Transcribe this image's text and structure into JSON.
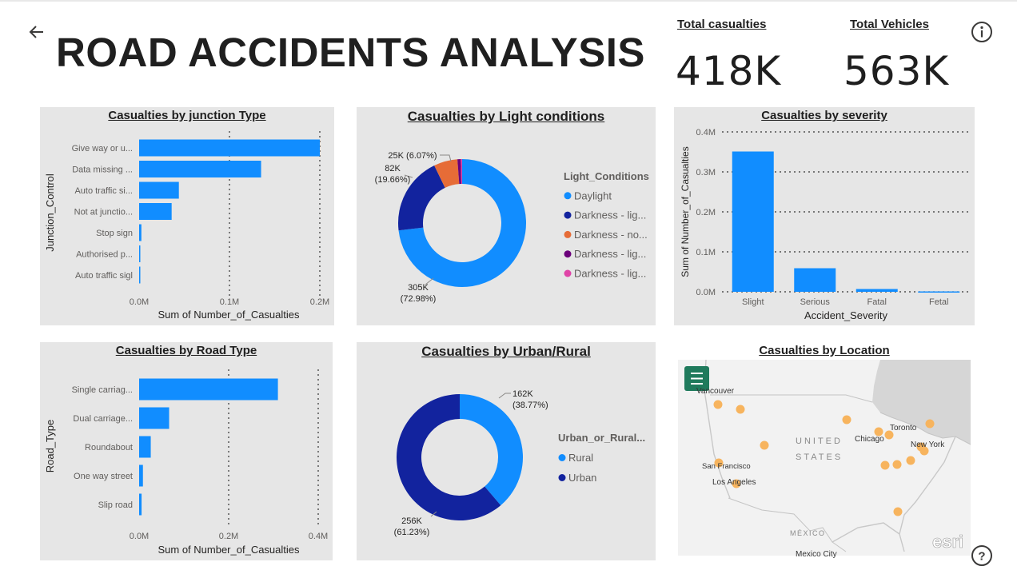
{
  "header": {
    "title": "ROAD ACCIDENTS ANALYSIS",
    "kpis": [
      {
        "label": "Total casualties",
        "value": "418K"
      },
      {
        "label": "Total Vehicles",
        "value": "563K"
      }
    ]
  },
  "colors": {
    "bar": "#118dff",
    "navy": "#12239e",
    "orange": "#e66c37",
    "purple": "#6b007b",
    "pink": "#e044a7",
    "panel_bg": "#e6e6e6",
    "map_dot": "#f7b45e",
    "map_button": "#1f7a5c"
  },
  "icons": {
    "back": "back-arrow-icon",
    "info": "info-icon",
    "help": "help-icon",
    "map_menu": "hamburger-menu-icon"
  },
  "charts": {
    "junction": {
      "title": "Casualties by junction Type",
      "chart_data": {
        "type": "bar",
        "orientation": "horizontal",
        "categories": [
          "Give way or u...",
          "Data missing ...",
          "Auto traffic si...",
          "Not at junctio...",
          "Stop sign",
          "Authorised p...",
          "Auto traffic sigl"
        ],
        "values": [
          200000,
          135000,
          44000,
          36000,
          2500,
          1200,
          800
        ],
        "xlabel": "Sum of Number_of_Casualties",
        "ylabel": "Junction_Control",
        "xlim": [
          0,
          200000
        ],
        "ticks": [
          0,
          100000,
          200000
        ],
        "tick_labels": [
          "0.0M",
          "0.1M",
          "0.2M"
        ],
        "grid": true
      }
    },
    "light": {
      "title": "Casualties by Light conditions",
      "legend_title": "Light_Conditions",
      "chart_data": {
        "type": "pie",
        "donut": true,
        "categories": [
          "Daylight",
          "Darkness - lig...",
          "Darkness - no...",
          "Darkness - lig...",
          "Darkness - lig..."
        ],
        "values": [
          305000,
          82000,
          25000,
          3500,
          1400
        ],
        "colors": [
          "#118dff",
          "#12239e",
          "#e66c37",
          "#6b007b",
          "#e044a7"
        ],
        "data_labels": [
          {
            "value": "305K",
            "percent": "(72.98%)"
          },
          {
            "value": "82K",
            "percent": "(19.66%)"
          },
          {
            "value": "25K (6.07%)",
            "percent": ""
          }
        ],
        "legend_position": "right"
      }
    },
    "severity": {
      "title": "Casualties by severity",
      "chart_data": {
        "type": "bar",
        "categories": [
          "Slight",
          "Serious",
          "Fatal",
          "Fetal"
        ],
        "values": [
          351000,
          59000,
          7000,
          1000
        ],
        "xlabel": "Accident_Severity",
        "ylabel": "Sum of Number_of_Casualties",
        "ylim": [
          0,
          400000
        ],
        "ticks": [
          0,
          100000,
          200000,
          300000,
          400000
        ],
        "tick_labels": [
          "0.0M",
          "0.1M",
          "0.2M",
          "0.3M",
          "0.4M"
        ],
        "grid": true
      }
    },
    "road": {
      "title": "Casualties by Road Type",
      "chart_data": {
        "type": "bar",
        "orientation": "horizontal",
        "categories": [
          "Single carriag...",
          "Dual carriage...",
          "Roundabout",
          "One way street",
          "Slip road"
        ],
        "values": [
          310000,
          67000,
          26000,
          8500,
          5500
        ],
        "xlabel": "Sum of Number_of_Casualties",
        "ylabel": "Road_Type",
        "xlim": [
          0,
          400000
        ],
        "ticks": [
          0,
          200000,
          400000
        ],
        "tick_labels": [
          "0.0M",
          "0.2M",
          "0.4M"
        ],
        "grid": true
      }
    },
    "urban": {
      "title": "Casualties by Urban/Rural",
      "legend_title": "Urban_or_Rural...",
      "chart_data": {
        "type": "pie",
        "donut": true,
        "categories": [
          "Rural",
          "Urban"
        ],
        "values": [
          162000,
          256000
        ],
        "colors": [
          "#118dff",
          "#12239e"
        ],
        "data_labels": [
          {
            "value": "162K",
            "percent": "(38.77%)"
          },
          {
            "value": "256K",
            "percent": "(61.23%)"
          }
        ],
        "legend_position": "right"
      }
    },
    "location": {
      "title": "Casualties by Location",
      "map_labels": {
        "country_us_1": "UNITED",
        "country_us_2": "STATES",
        "mexico": "MÉXICO",
        "cities": [
          "Vancouver",
          "Chicago",
          "Toronto",
          "New York",
          "San Francisco",
          "Los Angeles",
          "Mexico City"
        ],
        "attribution": "esri"
      }
    }
  }
}
